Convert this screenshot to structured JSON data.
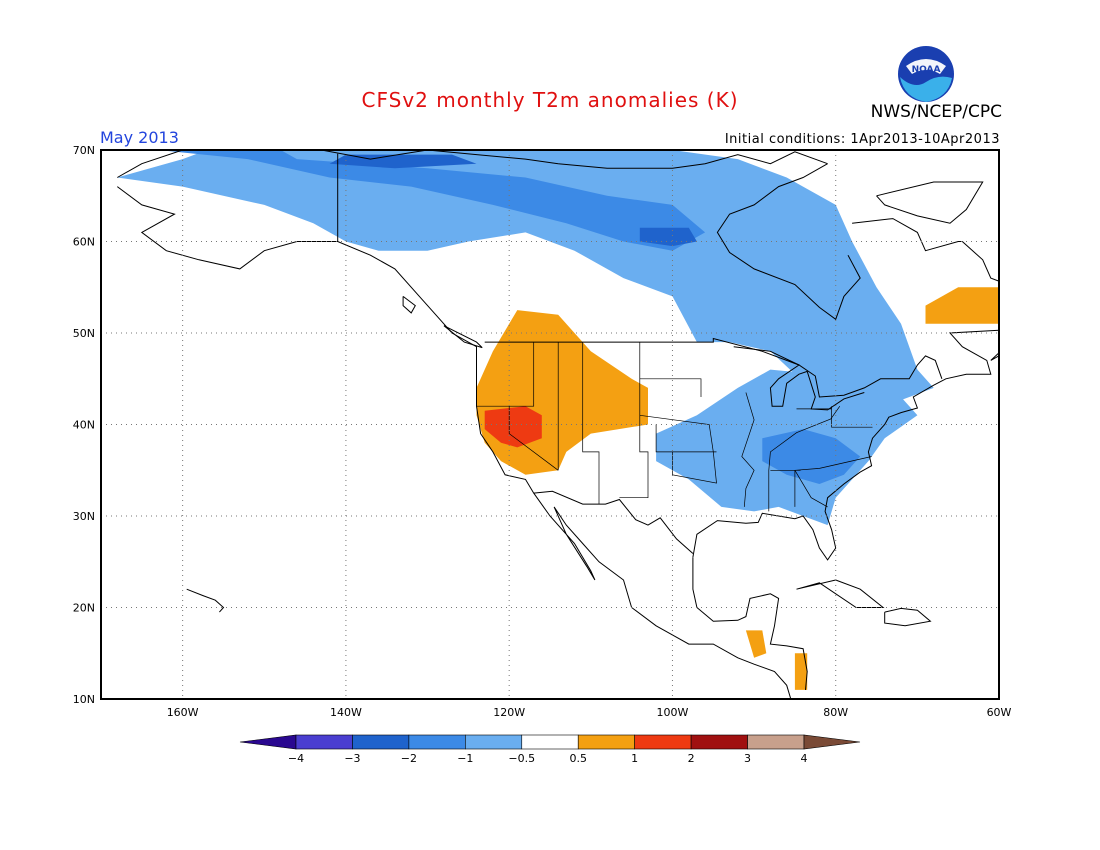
{
  "header": {
    "title": "CFSv2 monthly T2m anomalies (K)",
    "agency": "NWS/NCEP/CPC",
    "logo_text": "NOAA",
    "period": "May 2013",
    "initial_conditions": "Initial conditions: 1Apr2013-10Apr2013"
  },
  "map": {
    "lon_range": [
      -170,
      -60
    ],
    "lat_range": [
      10,
      70
    ],
    "lat_ticks": [
      {
        "value": 70,
        "label": "70N"
      },
      {
        "value": 60,
        "label": "60N"
      },
      {
        "value": 50,
        "label": "50N"
      },
      {
        "value": 40,
        "label": "40N"
      },
      {
        "value": 30,
        "label": "30N"
      },
      {
        "value": 20,
        "label": "20N"
      },
      {
        "value": 10,
        "label": "10N"
      }
    ],
    "lon_ticks": [
      {
        "value": -160,
        "label": "160W"
      },
      {
        "value": -140,
        "label": "140W"
      },
      {
        "value": -120,
        "label": "120W"
      },
      {
        "value": -100,
        "label": "100W"
      },
      {
        "value": -80,
        "label": "80W"
      },
      {
        "value": -60,
        "label": "60W"
      }
    ],
    "grid": true,
    "anomaly_regions": [
      {
        "name": "northern-canada-alaska-cool",
        "level": "-1",
        "color": "#6aaef0",
        "lonlat": [
          [
            -157,
            70
          ],
          [
            -100,
            70
          ],
          [
            -92,
            69
          ],
          [
            -86,
            67
          ],
          [
            -80,
            64
          ],
          [
            -78,
            60
          ],
          [
            -75,
            55
          ],
          [
            -72,
            51
          ],
          [
            -70,
            46
          ],
          [
            -68,
            44
          ],
          [
            -74,
            42
          ],
          [
            -82,
            43
          ],
          [
            -88,
            48
          ],
          [
            -93,
            49
          ],
          [
            -97,
            49
          ],
          [
            -100,
            54
          ],
          [
            -106,
            56
          ],
          [
            -112,
            59
          ],
          [
            -118,
            61
          ],
          [
            -125,
            60
          ],
          [
            -130,
            59
          ],
          [
            -136,
            59
          ],
          [
            -140,
            60
          ],
          [
            -144,
            62
          ],
          [
            -150,
            64
          ],
          [
            -160,
            66
          ],
          [
            -168,
            67
          ],
          [
            -160,
            69
          ]
        ]
      },
      {
        "name": "northern-canada-alaska-cold",
        "level": "-2",
        "color": "#3c8ae6",
        "lonlat": [
          [
            -163,
            70
          ],
          [
            -148,
            70
          ],
          [
            -146,
            69
          ],
          [
            -130,
            68
          ],
          [
            -118,
            67
          ],
          [
            -108,
            65
          ],
          [
            -100,
            64
          ],
          [
            -96,
            61
          ],
          [
            -100,
            59
          ],
          [
            -106,
            60
          ],
          [
            -113,
            62
          ],
          [
            -122,
            64
          ],
          [
            -132,
            66
          ],
          [
            -142,
            67
          ],
          [
            -152,
            69
          ]
        ]
      },
      {
        "name": "arctic-coast-cold-core",
        "level": "-3",
        "color": "#1f63cc",
        "lonlat": [
          [
            -140,
            69.5
          ],
          [
            -127,
            69.5
          ],
          [
            -124,
            68.5
          ],
          [
            -134,
            68
          ],
          [
            -142,
            68.5
          ]
        ]
      },
      {
        "name": "hudson-bay-cold-core",
        "level": "-3",
        "color": "#1f63cc",
        "lonlat": [
          [
            -104,
            61.5
          ],
          [
            -98,
            61.5
          ],
          [
            -97,
            60
          ],
          [
            -100,
            59.5
          ],
          [
            -104,
            60
          ]
        ]
      },
      {
        "name": "eastern-us-cool",
        "level": "-1",
        "color": "#6aaef0",
        "lonlat": [
          [
            -102,
            39
          ],
          [
            -97,
            41
          ],
          [
            -92,
            44
          ],
          [
            -88,
            46
          ],
          [
            -82,
            45.5
          ],
          [
            -76,
            44
          ],
          [
            -72,
            43
          ],
          [
            -70,
            41
          ],
          [
            -74,
            38.5
          ],
          [
            -76,
            36
          ],
          [
            -78,
            34
          ],
          [
            -80,
            32
          ],
          [
            -81,
            29
          ],
          [
            -84,
            30
          ],
          [
            -87,
            31
          ],
          [
            -90,
            30.5
          ],
          [
            -94,
            31
          ],
          [
            -98,
            34
          ],
          [
            -102,
            36
          ]
        ]
      },
      {
        "name": "eastern-us-cold",
        "level": "-2",
        "color": "#3c8ae6",
        "lonlat": [
          [
            -89,
            38.5
          ],
          [
            -84,
            39.5
          ],
          [
            -80,
            38.5
          ],
          [
            -77,
            36.5
          ],
          [
            -79,
            34.5
          ],
          [
            -82,
            33.5
          ],
          [
            -86,
            34.5
          ],
          [
            -89,
            36
          ]
        ]
      },
      {
        "name": "western-us-warm",
        "level": "1",
        "color": "#f4a012",
        "lonlat": [
          [
            -119,
            52.5
          ],
          [
            -114,
            52
          ],
          [
            -110,
            48
          ],
          [
            -105,
            45
          ],
          [
            -103,
            44
          ],
          [
            -103,
            40
          ],
          [
            -110,
            39
          ],
          [
            -113,
            37
          ],
          [
            -114,
            35
          ],
          [
            -118,
            34.5
          ],
          [
            -121,
            36
          ],
          [
            -123,
            38
          ],
          [
            -124,
            41
          ],
          [
            -124,
            44
          ],
          [
            -122,
            48
          ]
        ]
      },
      {
        "name": "great-basin-hot",
        "level": "2",
        "color": "#ee3a12",
        "lonlat": [
          [
            -123,
            41.5
          ],
          [
            -118,
            42
          ],
          [
            -116,
            41
          ],
          [
            -116,
            38.5
          ],
          [
            -119,
            37.5
          ],
          [
            -121,
            38
          ],
          [
            -123,
            39.5
          ]
        ]
      },
      {
        "name": "labrador-warm",
        "level": "1",
        "color": "#f4a012",
        "lonlat": [
          [
            -65,
            55
          ],
          [
            -60,
            55
          ],
          [
            -60,
            51
          ],
          [
            -69,
            51
          ],
          [
            -69,
            53
          ]
        ]
      },
      {
        "name": "central-america-warm",
        "level": "1",
        "color": "#f4a012",
        "lonlat": [
          [
            -91,
            17.5
          ],
          [
            -89,
            17.5
          ],
          [
            -88.5,
            15
          ],
          [
            -90,
            14.5
          ]
        ]
      },
      {
        "name": "nicaragua-warm",
        "level": "1",
        "color": "#f4a012",
        "lonlat": [
          [
            -85,
            15
          ],
          [
            -83.5,
            15
          ],
          [
            -83.5,
            11
          ],
          [
            -85,
            11
          ]
        ]
      }
    ]
  },
  "colorbar": {
    "bins": [
      {
        "color": "#2a0890"
      },
      {
        "color": "#4a3ed0"
      },
      {
        "color": "#1f63cc"
      },
      {
        "color": "#3c8ae6"
      },
      {
        "color": "#6aaef0"
      },
      {
        "color": "#ffffff"
      },
      {
        "color": "#f4a012"
      },
      {
        "color": "#ee3a12"
      },
      {
        "color": "#a01010"
      },
      {
        "color": "#c8a08c"
      },
      {
        "color": "#7a4a36"
      }
    ],
    "labels": [
      "-4",
      "-3",
      "-2",
      "-1",
      "-0.5",
      "0.5",
      "1",
      "2",
      "3",
      "4"
    ]
  }
}
